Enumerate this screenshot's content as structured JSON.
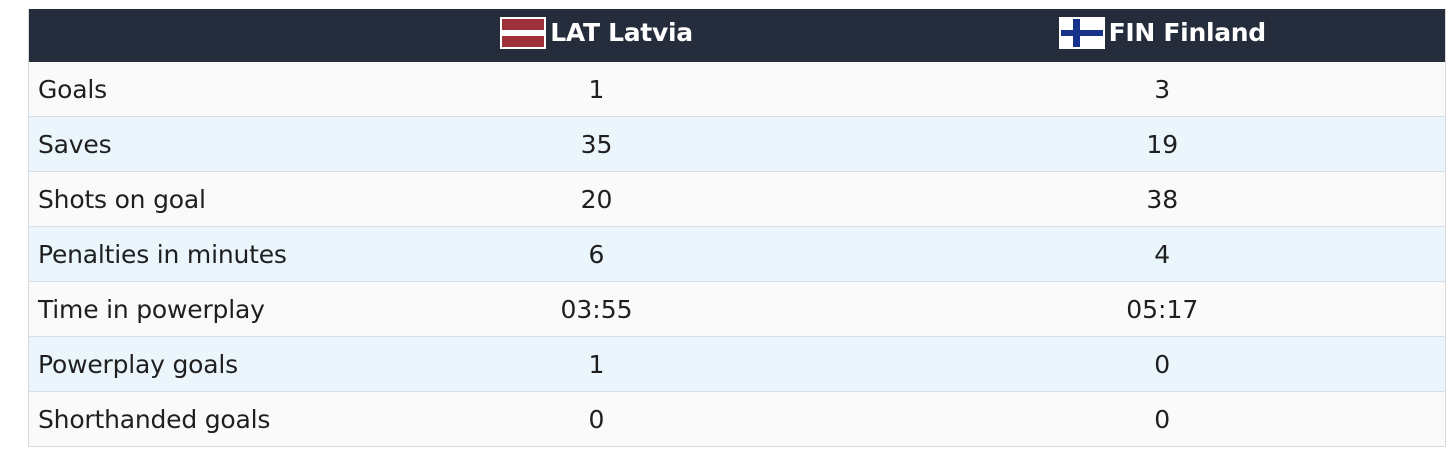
{
  "header": {
    "label_col": "",
    "team1": {
      "code_name": "LAT Latvia",
      "flag_icon": "latvia-flag-icon"
    },
    "team2": {
      "code_name": "FIN Finland",
      "flag_icon": "finland-flag-icon"
    }
  },
  "colors": {
    "header_bg": "#252c3b",
    "row_alt": "#eaf6fc",
    "row_base": "#fafafa",
    "latvia_red": "#9e3039",
    "finland_blue": "#17328a"
  },
  "rows": [
    {
      "label": "Goals",
      "team1": "1",
      "team2": "3"
    },
    {
      "label": "Saves",
      "team1": "35",
      "team2": "19"
    },
    {
      "label": "Shots on goal",
      "team1": "20",
      "team2": "38"
    },
    {
      "label": "Penalties in minutes",
      "team1": "6",
      "team2": "4"
    },
    {
      "label": "Time in powerplay",
      "team1": "03:55",
      "team2": "05:17"
    },
    {
      "label": "Powerplay goals",
      "team1": "1",
      "team2": "0"
    },
    {
      "label": "Shorthanded goals",
      "team1": "0",
      "team2": "0"
    }
  ]
}
